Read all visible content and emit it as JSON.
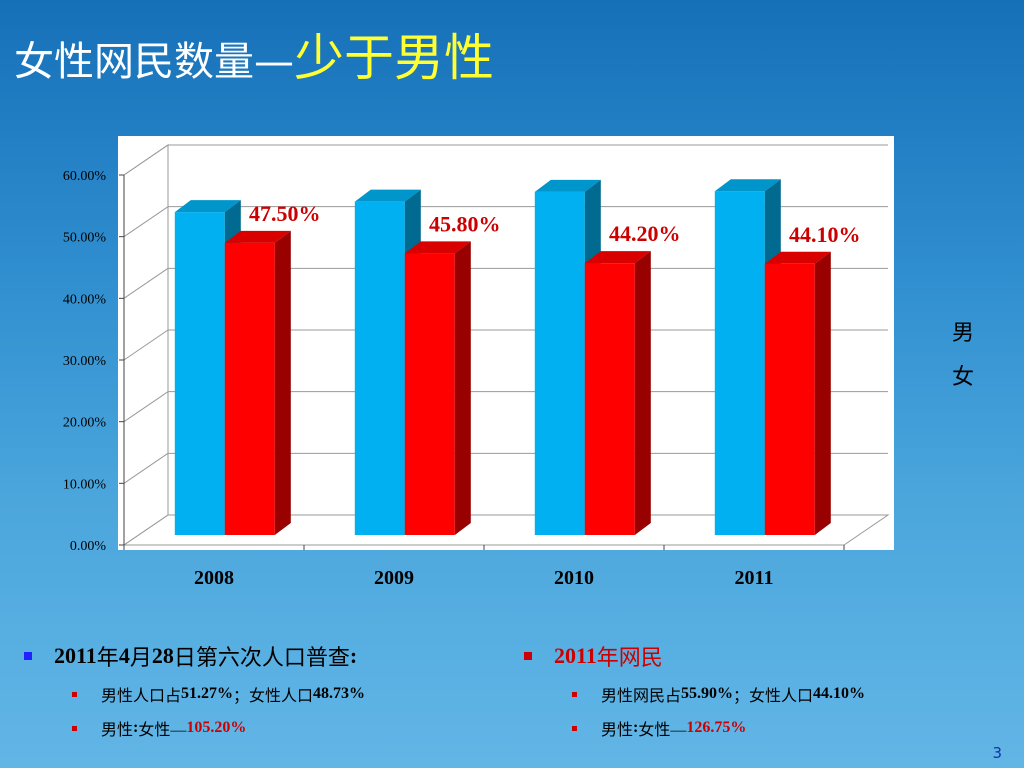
{
  "title": {
    "main": "女性网民数量—",
    "highlight": "少于男性"
  },
  "colors": {
    "male": "#00b0f0",
    "female": "#ff0000",
    "label": "#cc0000"
  },
  "legend": {
    "male": "男",
    "female": "女"
  },
  "chart_data": {
    "type": "bar",
    "categories": [
      "2008",
      "2009",
      "2010",
      "2011"
    ],
    "series": [
      {
        "name": "男",
        "values": [
          52.5,
          54.2,
          55.8,
          55.9
        ]
      },
      {
        "name": "女",
        "values": [
          47.5,
          45.8,
          44.2,
          44.1
        ],
        "data_labels": [
          "47.50%",
          "45.80%",
          "44.20%",
          "44.10%"
        ]
      }
    ],
    "ylim": [
      0,
      60
    ],
    "yticks": [
      "0.00%",
      "10.00%",
      "20.00%",
      "30.00%",
      "40.00%",
      "50.00%",
      "60.00%"
    ],
    "grid": true,
    "legend_position": "right"
  },
  "notes": {
    "left": {
      "heading": {
        "year": "2011",
        "y_char": "年",
        "month": "4",
        "m_char": "月",
        "day": "28",
        "rest": "日第六次人口普查",
        "colon": ":"
      },
      "line1": {
        "prefix": "男性人口占",
        "male_pct": "51.27%",
        "mid": "；女性人口",
        "female_pct": "48.73%"
      },
      "line2": {
        "prefix": "男性",
        "colon": ":",
        "mid": "女性—",
        "value": "105.20%"
      }
    },
    "right": {
      "heading": {
        "year": "2011",
        "rest": "年网民"
      },
      "line1": {
        "prefix": "男性网民占",
        "male_pct": "55.90%",
        "mid": "；女性人口",
        "female_pct": "44.10%"
      },
      "line2": {
        "prefix": "男性",
        "colon": ":",
        "mid": "女性—",
        "value": "126.75%"
      }
    }
  },
  "page_number": "3"
}
